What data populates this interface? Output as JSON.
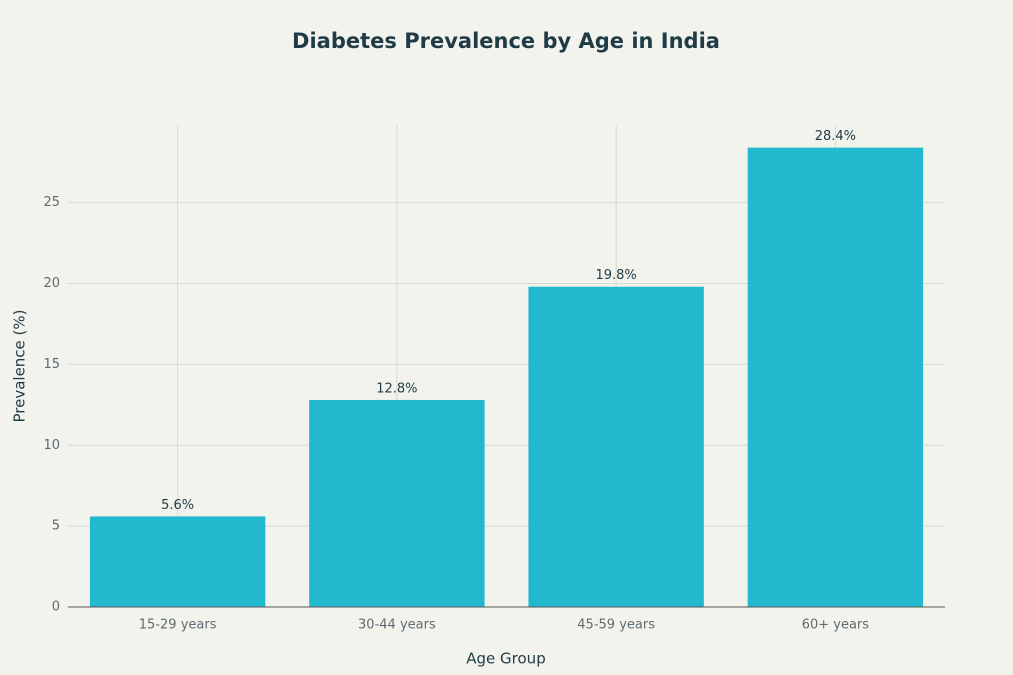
{
  "chart_data": {
    "type": "bar",
    "title": "Diabetes Prevalence by Age in India",
    "x_label": "Age Group",
    "y_label": "Prevalence (%)",
    "categories": [
      "15-29 years",
      "30-44 years",
      "45-59 years",
      "60+ years"
    ],
    "values": [
      5.6,
      12.8,
      19.8,
      28.4
    ],
    "value_labels": [
      "5.6%",
      "12.8%",
      "19.8%",
      "28.4%"
    ],
    "color": "#22b8cd",
    "ylim": [
      0,
      29.8
    ],
    "yticks": [
      0,
      5,
      10,
      15,
      20,
      25
    ],
    "grid": true
  }
}
